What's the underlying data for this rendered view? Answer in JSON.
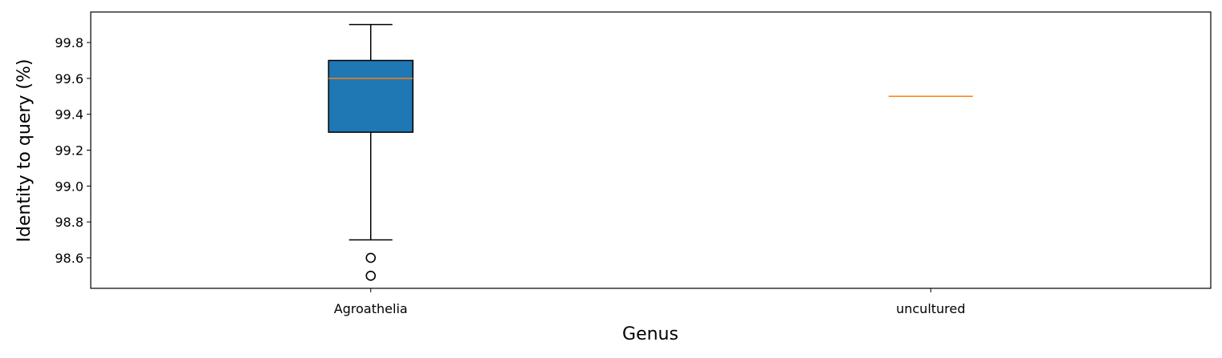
{
  "chart_data": {
    "type": "box",
    "xlabel": "Genus",
    "ylabel": "Identity to query (%)",
    "categories": [
      "Agroathelia",
      "uncultured"
    ],
    "ylim": [
      98.43,
      99.97
    ],
    "yticks": [
      98.6,
      98.8,
      99.0,
      99.2,
      99.4,
      99.6,
      99.8
    ],
    "ytick_labels": [
      "98.6",
      "98.8",
      "99.0",
      "99.2",
      "99.4",
      "99.6",
      "99.8"
    ],
    "grid": false,
    "series": [
      {
        "category": "Agroathelia",
        "whisker_low": 98.7,
        "q1": 99.3,
        "median": 99.6,
        "q3": 99.7,
        "whisker_high": 99.9,
        "outliers": [
          98.6,
          98.5
        ]
      },
      {
        "category": "uncultured",
        "whisker_low": 99.5,
        "q1": 99.5,
        "median": 99.5,
        "q3": 99.5,
        "whisker_high": 99.5,
        "outliers": []
      }
    ],
    "colors": {
      "box_fill": "#1f77b4",
      "median": "#ff7f0e",
      "line": "#000000"
    }
  }
}
